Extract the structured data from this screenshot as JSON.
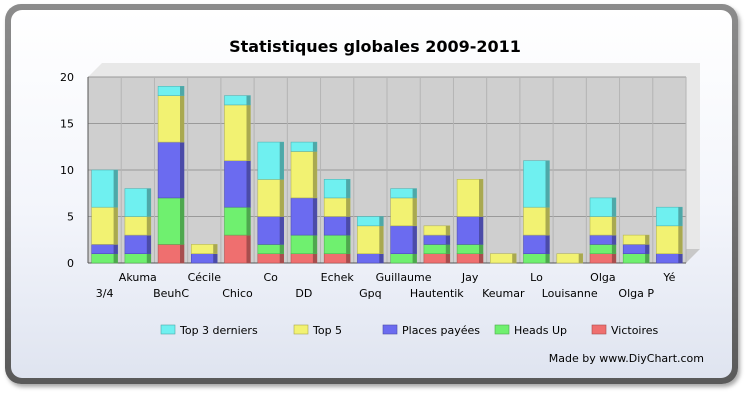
{
  "chart_data": {
    "type": "bar",
    "stacked": true,
    "title": "Statistiques globales 2009-2011",
    "categories": [
      "3/4",
      "Akuma",
      "BeuhC",
      "Cécile",
      "Chico",
      "Co",
      "DD",
      "Echek",
      "Gpq",
      "Guillaume",
      "Hautentik",
      "Jay",
      "Keumar",
      "Lo",
      "Louisanne",
      "Olga",
      "Olga P",
      "Yé"
    ],
    "ylim": [
      0,
      20
    ],
    "yticks": [
      "0",
      "5",
      "10",
      "15",
      "20"
    ],
    "grid": true,
    "legend_position": "bottom",
    "series": [
      {
        "name": "Victoires",
        "color": "#ef6f6f",
        "values": [
          0,
          0,
          2,
          0,
          3,
          1,
          1,
          1,
          0,
          0,
          1,
          1,
          0,
          0,
          0,
          1,
          0,
          0
        ]
      },
      {
        "name": "Heads Up",
        "color": "#6ff06f",
        "values": [
          1,
          1,
          5,
          0,
          3,
          1,
          2,
          2,
          0,
          1,
          1,
          1,
          0,
          1,
          0,
          1,
          1,
          0
        ]
      },
      {
        "name": "Places payées",
        "color": "#6b6bf0",
        "values": [
          1,
          2,
          6,
          1,
          5,
          3,
          4,
          2,
          1,
          3,
          1,
          3,
          0,
          2,
          0,
          1,
          1,
          1
        ]
      },
      {
        "name": "Top 5",
        "color": "#f2f272",
        "values": [
          4,
          2,
          5,
          1,
          6,
          4,
          5,
          2,
          3,
          3,
          1,
          4,
          1,
          3,
          1,
          2,
          1,
          3
        ]
      },
      {
        "name": "Top 3 derniers",
        "color": "#6ff0f0",
        "values": [
          4,
          3,
          1,
          0,
          1,
          4,
          1,
          2,
          1,
          1,
          0,
          0,
          0,
          5,
          0,
          2,
          0,
          2
        ]
      }
    ]
  },
  "credit": "Made by www.DiyChart.com"
}
